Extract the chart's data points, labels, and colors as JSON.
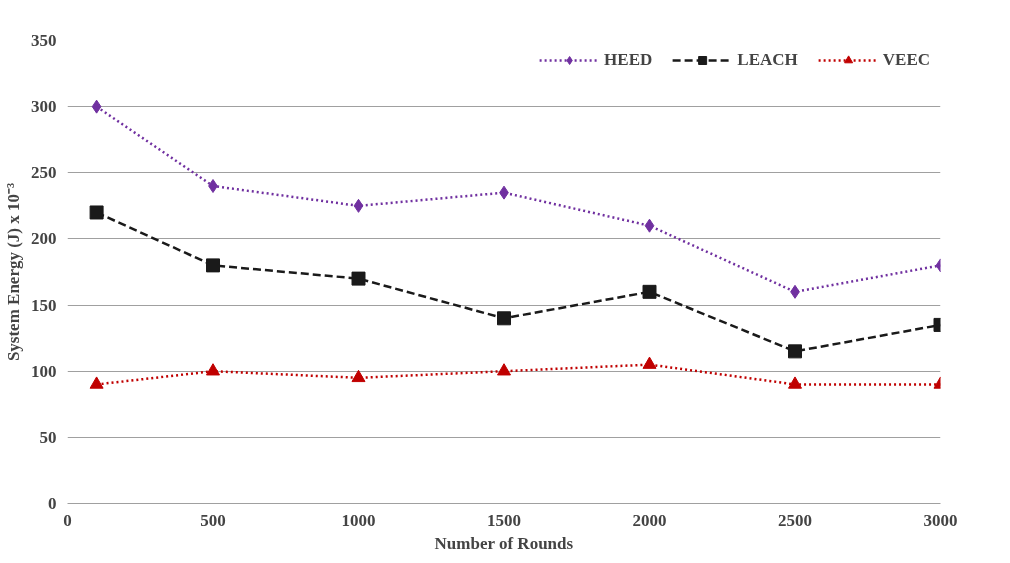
{
  "chart_data": {
    "type": "line",
    "xlabel": "Number of Rounds",
    "ylabel": "System Energy (J) x 10⁻³",
    "x": [
      100,
      500,
      1000,
      1500,
      2000,
      2500,
      3000
    ],
    "series": [
      {
        "name": "HEED",
        "color": "#7030a0",
        "marker": "diamond",
        "line_style": "dotted",
        "values": [
          300,
          240,
          225,
          235,
          210,
          160,
          180
        ]
      },
      {
        "name": "LEACH",
        "color": "#1a1a1a",
        "marker": "square",
        "line_style": "dashed",
        "values": [
          220,
          180,
          170,
          140,
          160,
          115,
          135
        ]
      },
      {
        "name": "VEEC",
        "color": "#c00000",
        "marker": "triangle",
        "line_style": "dotted",
        "values": [
          90,
          100,
          95,
          100,
          105,
          90,
          90
        ]
      }
    ],
    "xlim": [
      0,
      3000
    ],
    "xticks": [
      0,
      500,
      1000,
      1500,
      2000,
      2500,
      3000
    ],
    "ylim": [
      0,
      350
    ],
    "yticks": [
      0,
      50,
      100,
      150,
      200,
      250,
      300,
      350
    ],
    "grid": "y",
    "legend": "top right"
  }
}
